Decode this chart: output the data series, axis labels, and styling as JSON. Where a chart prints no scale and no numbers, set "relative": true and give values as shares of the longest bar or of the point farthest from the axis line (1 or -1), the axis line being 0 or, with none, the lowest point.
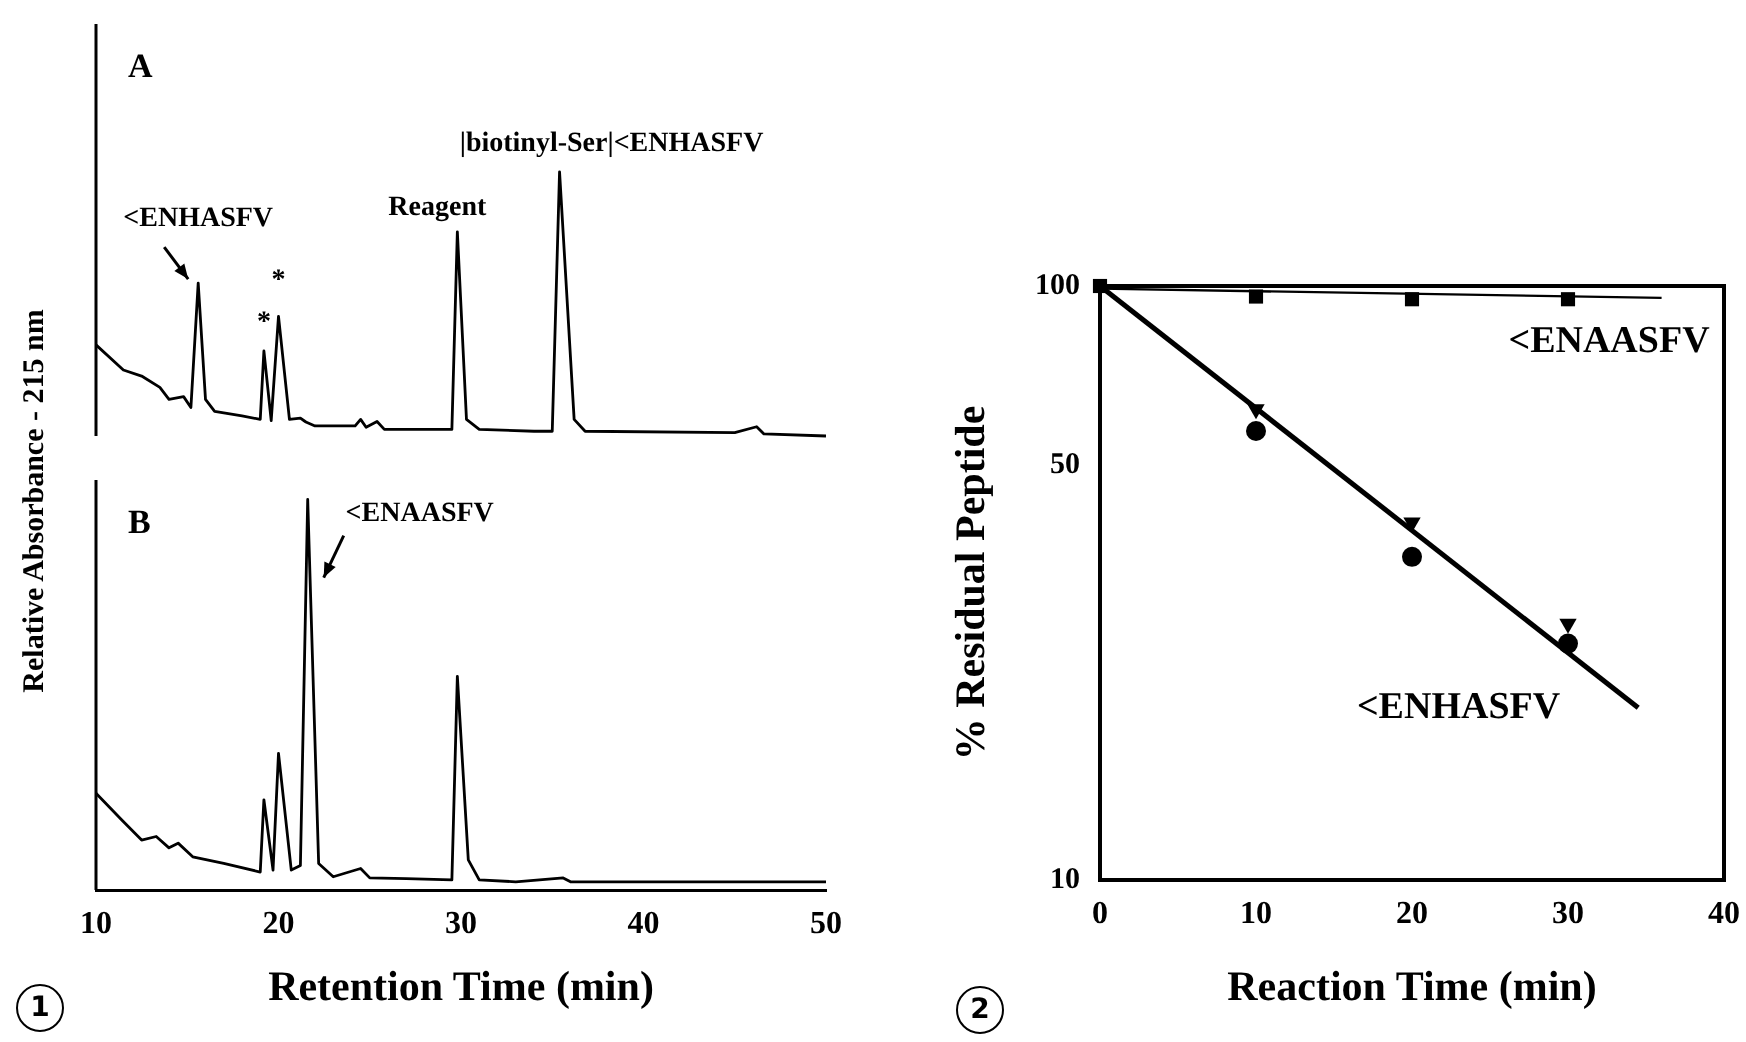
{
  "chart_data": [
    {
      "type": "line",
      "title": "A",
      "ylabel": "Relative Absorbance - 215 nm",
      "relative": true,
      "color": "#000000",
      "marker": "none",
      "tick_labels": false,
      "xlim": [
        10,
        50
      ],
      "xticks": [
        10,
        20,
        30,
        40,
        50
      ],
      "x": [
        10,
        11.5,
        12.5,
        13.5,
        14,
        14.8,
        15.2,
        15.6,
        16,
        16.5,
        18,
        19,
        19.2,
        19.6,
        20,
        20.6,
        21.2,
        21.5,
        22,
        24.2,
        24.5,
        24.8,
        25.4,
        25.8,
        28,
        29.5,
        29.8,
        30.3,
        31,
        34,
        35,
        35.4,
        36.2,
        36.8,
        45,
        46.2,
        46.6,
        50
      ],
      "values": [
        0.345,
        0.25,
        0.227,
        0.184,
        0.139,
        0.149,
        0.108,
        0.579,
        0.139,
        0.093,
        0.076,
        0.063,
        0.322,
        0.058,
        0.453,
        0.063,
        0.068,
        0.053,
        0.038,
        0.038,
        0.063,
        0.033,
        0.055,
        0.025,
        0.025,
        0.025,
        0.773,
        0.063,
        0.025,
        0.018,
        0.018,
        1,
        0.063,
        0.018,
        0.013,
        0.035,
        0.008,
        0
      ],
      "annotations": [
        {
          "text": "<ENHASFV",
          "x": 15.6,
          "y": 0.579
        },
        {
          "text": "*",
          "x": 19.2,
          "y": 0.322
        },
        {
          "text": "*",
          "x": 20,
          "y": 0.453
        },
        {
          "text": "Reagent",
          "x": 29.8,
          "y": 0.773
        },
        {
          "text": "|biotinyl-Ser|<ENHASFV",
          "x": 35.4,
          "y": 1
        }
      ]
    },
    {
      "type": "line",
      "title": "B",
      "xlabel": "Retention Time (min)",
      "relative": true,
      "color": "#000000",
      "marker": "none",
      "tick_labels": "x",
      "xlim": [
        10,
        50
      ],
      "xticks": [
        10,
        20,
        30,
        40,
        50
      ],
      "x": [
        10,
        11.4,
        12.5,
        13.3,
        14,
        14.5,
        15.3,
        17,
        19,
        19.2,
        19.7,
        20,
        20.7,
        21.2,
        21.6,
        22.2,
        23,
        24.5,
        25,
        27,
        29.5,
        29.8,
        30.4,
        31,
        33,
        35.6,
        36,
        50
      ],
      "values": [
        0.248,
        0.18,
        0.128,
        0.137,
        0.108,
        0.12,
        0.085,
        0.068,
        0.046,
        0.231,
        0.051,
        0.35,
        0.051,
        0.063,
        1,
        0.068,
        0.034,
        0.055,
        0.031,
        0.029,
        0.026,
        0.547,
        0.077,
        0.026,
        0.021,
        0.031,
        0.021,
        0.021
      ],
      "annotations": [
        {
          "text": "<ENAASFV",
          "x": 21.6,
          "y": 1
        },
        "1"
      ]
    },
    {
      "type": "scatter",
      "xlabel": "Reaction Time (min)",
      "ylabel": "% Residual Peptide",
      "log": true,
      "xlim": [
        0,
        40
      ],
      "xticks": [
        0,
        10,
        20,
        30,
        40
      ],
      "ylim": [
        10,
        100
      ],
      "yticks": [
        10,
        50,
        100
      ],
      "series": [
        {
          "name": "<ENAASFV",
          "type": "line",
          "color": "#000000",
          "marker": "none",
          "x": [
            0,
            36
          ],
          "values": [
            99,
            95.5
          ]
        },
        {
          "type": "scatter",
          "color": "#000000",
          "marker": "square",
          "x": [
            0,
            10,
            20,
            30
          ],
          "values": [
            100,
            96,
            95,
            95
          ]
        },
        {
          "name": "<ENHASFV",
          "type": "line",
          "color": "#000000",
          "marker": "none",
          "x": [
            0,
            34.5
          ],
          "values": [
            100,
            19.5
          ]
        },
        {
          "type": "scatter",
          "color": "#000000",
          "marker": "triangle",
          "x": [
            10,
            20,
            30
          ],
          "values": [
            62,
            40,
            27
          ]
        },
        {
          "type": "scatter",
          "color": "#000000",
          "marker": "circle",
          "x": [
            10,
            20,
            30
          ],
          "values": [
            57,
            35,
            25
          ]
        }
      ],
      "annotations": [
        "2"
      ]
    }
  ]
}
